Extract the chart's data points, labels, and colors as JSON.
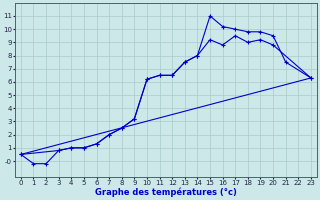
{
  "title": "Graphe des températures (°c)",
  "bg_color": "#cce8e8",
  "grid_color": "#aacccc",
  "line_color": "#0000cc",
  "xlim": [
    -0.5,
    23.5
  ],
  "ylim": [
    -1.2,
    12
  ],
  "xticks": [
    0,
    1,
    2,
    3,
    4,
    5,
    6,
    7,
    8,
    9,
    10,
    11,
    12,
    13,
    14,
    15,
    16,
    17,
    18,
    19,
    20,
    21,
    22,
    23
  ],
  "yticks": [
    0,
    1,
    2,
    3,
    4,
    5,
    6,
    7,
    8,
    9,
    10,
    11
  ],
  "ytick_labels": [
    "-0",
    "1",
    "2",
    "3",
    "4",
    "5",
    "6",
    "7",
    "8",
    "9",
    "10",
    "11"
  ],
  "line1_x": [
    0,
    1,
    2,
    3,
    4,
    5,
    6,
    7,
    8,
    9,
    10,
    11,
    12,
    13,
    14,
    15,
    16,
    17,
    18,
    19,
    20,
    21,
    23
  ],
  "line1_y": [
    0.5,
    -0.2,
    -0.2,
    0.8,
    1.0,
    1.0,
    1.3,
    2.0,
    2.5,
    3.2,
    6.2,
    6.5,
    6.5,
    7.5,
    8.0,
    11.0,
    10.2,
    10.0,
    9.8,
    9.8,
    9.5,
    7.5,
    6.3
  ],
  "line2_x": [
    0,
    3,
    4,
    5,
    6,
    7,
    8,
    9,
    10,
    11,
    12,
    13,
    14,
    15,
    16,
    17,
    18,
    19,
    20,
    23
  ],
  "line2_y": [
    0.5,
    0.8,
    1.0,
    1.0,
    1.3,
    2.0,
    2.5,
    3.2,
    6.2,
    6.5,
    6.5,
    7.5,
    8.0,
    9.2,
    8.8,
    9.5,
    9.0,
    9.2,
    8.8,
    6.3
  ],
  "line3_x": [
    0,
    23
  ],
  "line3_y": [
    0.5,
    6.3
  ]
}
